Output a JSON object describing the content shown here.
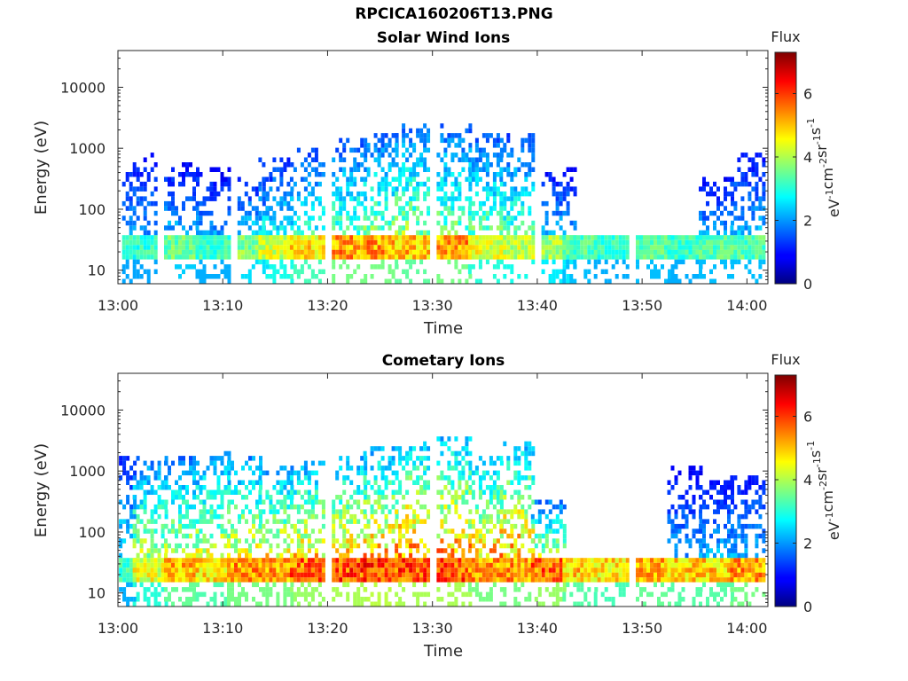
{
  "figure": {
    "filename": "RPCICA160206T13.PNG"
  },
  "colorbar": {
    "label_main": "Flux",
    "unit_parts": [
      "eV",
      "-1",
      "cm",
      "-2",
      "sr",
      "-1",
      "s",
      "-1"
    ],
    "ticks": [
      "0",
      "2",
      "4",
      "6"
    ],
    "range": [
      0,
      7.3
    ],
    "colormap": "jet"
  },
  "chart_data": [
    {
      "type": "heatmap",
      "title": "Solar Wind Ions",
      "xlabel": "Time",
      "ylabel": "Energy (eV)",
      "yscale": "log",
      "ylim": [
        6,
        40000
      ],
      "xlim": [
        "13:00",
        "14:02"
      ],
      "x_tick_labels": [
        "13:00",
        "13:10",
        "13:20",
        "13:30",
        "13:40",
        "13:50",
        "14:00"
      ],
      "y_tick_labels": [
        "10",
        "100",
        "1000",
        "10000"
      ],
      "colorbar_range": [
        0,
        7.3
      ],
      "bursts": [
        {
          "t": "13:02",
          "low_band_max_flux": 3.5,
          "upper_energy_eV": 800,
          "upper_flux": 2.0
        },
        {
          "t": "13:06",
          "low_band_max_flux": 4.0,
          "upper_energy_eV": 500,
          "upper_flux": 2.2
        },
        {
          "t": "13:09",
          "low_band_max_flux": 3.6,
          "upper_energy_eV": 400,
          "upper_flux": 2.0
        },
        {
          "t": "13:13",
          "low_band_max_flux": 4.2,
          "upper_energy_eV": 300,
          "upper_flux": 2.4
        },
        {
          "t": "13:15",
          "low_band_max_flux": 4.8,
          "upper_energy_eV": 600,
          "upper_flux": 2.8
        },
        {
          "t": "13:18",
          "low_band_max_flux": 5.4,
          "upper_energy_eV": 900,
          "upper_flux": 3.0
        },
        {
          "t": "13:22",
          "low_band_max_flux": 6.0,
          "upper_energy_eV": 1200,
          "upper_flux": 3.4
        },
        {
          "t": "13:25",
          "low_band_max_flux": 6.0,
          "upper_energy_eV": 1500,
          "upper_flux": 3.6
        },
        {
          "t": "13:28",
          "low_band_max_flux": 5.7,
          "upper_energy_eV": 2000,
          "upper_flux": 3.8
        },
        {
          "t": "13:32",
          "low_band_max_flux": 6.0,
          "upper_energy_eV": 2000,
          "upper_flux": 3.6
        },
        {
          "t": "13:35",
          "low_band_max_flux": 5.0,
          "upper_energy_eV": 1500,
          "upper_flux": 3.4
        },
        {
          "t": "13:38",
          "low_band_max_flux": 4.8,
          "upper_energy_eV": 1500,
          "upper_flux": 3.2
        },
        {
          "t": "13:42",
          "low_band_max_flux": 4.4,
          "upper_energy_eV": 400,
          "upper_flux": 2.2
        },
        {
          "t": "13:44",
          "low_band_max_flux": 3.8,
          "upper_energy_eV": 0,
          "upper_flux": 0
        },
        {
          "t": "13:47",
          "low_band_max_flux": 3.6,
          "upper_energy_eV": 0,
          "upper_flux": 0
        },
        {
          "t": "13:51",
          "low_band_max_flux": 3.8,
          "upper_energy_eV": 0,
          "upper_flux": 0
        },
        {
          "t": "13:54",
          "low_band_max_flux": 3.6,
          "upper_energy_eV": 0,
          "upper_flux": 0
        },
        {
          "t": "13:57",
          "low_band_max_flux": 3.8,
          "upper_energy_eV": 300,
          "upper_flux": 2.0
        },
        {
          "t": "14:00",
          "low_band_max_flux": 3.8,
          "upper_energy_eV": 800,
          "upper_flux": 2.2
        }
      ],
      "low_band_eV": [
        15,
        40
      ]
    },
    {
      "type": "heatmap",
      "title": "Cometary Ions",
      "xlabel": "Time",
      "ylabel": "Energy (eV)",
      "yscale": "log",
      "ylim": [
        6,
        40000
      ],
      "xlim": [
        "13:00",
        "14:02"
      ],
      "x_tick_labels": [
        "13:00",
        "13:10",
        "13:20",
        "13:30",
        "13:40",
        "13:50",
        "14:00"
      ],
      "y_tick_labels": [
        "10",
        "100",
        "1000",
        "10000"
      ],
      "colorbar_range": [
        0,
        7.3
      ],
      "bursts": [
        {
          "t": "13:00",
          "low_band_max_flux": 3.6,
          "upper_energy_eV": 1500,
          "upper_flux": 2.6
        },
        {
          "t": "13:03",
          "low_band_max_flux": 5.0,
          "upper_energy_eV": 1500,
          "upper_flux": 4.0
        },
        {
          "t": "13:06",
          "low_band_max_flux": 5.8,
          "upper_energy_eV": 1500,
          "upper_flux": 4.0
        },
        {
          "t": "13:09",
          "low_band_max_flux": 5.5,
          "upper_energy_eV": 1800,
          "upper_flux": 4.2
        },
        {
          "t": "13:12",
          "low_band_max_flux": 6.0,
          "upper_energy_eV": 1500,
          "upper_flux": 4.4
        },
        {
          "t": "13:15",
          "low_band_max_flux": 6.0,
          "upper_energy_eV": 1000,
          "upper_flux": 4.6
        },
        {
          "t": "13:18",
          "low_band_max_flux": 6.4,
          "upper_energy_eV": 1200,
          "upper_flux": 4.8
        },
        {
          "t": "13:22",
          "low_band_max_flux": 6.6,
          "upper_energy_eV": 1500,
          "upper_flux": 4.8
        },
        {
          "t": "13:25",
          "low_band_max_flux": 6.8,
          "upper_energy_eV": 2000,
          "upper_flux": 5.0
        },
        {
          "t": "13:28",
          "low_band_max_flux": 6.6,
          "upper_energy_eV": 2500,
          "upper_flux": 5.4
        },
        {
          "t": "13:32",
          "low_band_max_flux": 6.6,
          "upper_energy_eV": 3000,
          "upper_flux": 5.2
        },
        {
          "t": "13:35",
          "low_band_max_flux": 6.0,
          "upper_energy_eV": 1500,
          "upper_flux": 5.0
        },
        {
          "t": "13:38",
          "low_band_max_flux": 6.0,
          "upper_energy_eV": 2500,
          "upper_flux": 5.2
        },
        {
          "t": "13:41",
          "low_band_max_flux": 6.4,
          "upper_energy_eV": 300,
          "upper_flux": 4.0
        },
        {
          "t": "13:44",
          "low_band_max_flux": 5.6,
          "upper_energy_eV": 0,
          "upper_flux": 0
        },
        {
          "t": "13:47",
          "low_band_max_flux": 5.4,
          "upper_energy_eV": 0,
          "upper_flux": 0
        },
        {
          "t": "13:51",
          "low_band_max_flux": 5.8,
          "upper_energy_eV": 0,
          "upper_flux": 0
        },
        {
          "t": "13:54",
          "low_band_max_flux": 5.6,
          "upper_energy_eV": 1000,
          "upper_flux": 2.0
        },
        {
          "t": "13:57",
          "low_band_max_flux": 5.6,
          "upper_energy_eV": 600,
          "upper_flux": 2.2
        },
        {
          "t": "14:00",
          "low_band_max_flux": 6.0,
          "upper_energy_eV": 800,
          "upper_flux": 2.2
        }
      ],
      "low_band_eV": [
        15,
        40
      ]
    }
  ]
}
